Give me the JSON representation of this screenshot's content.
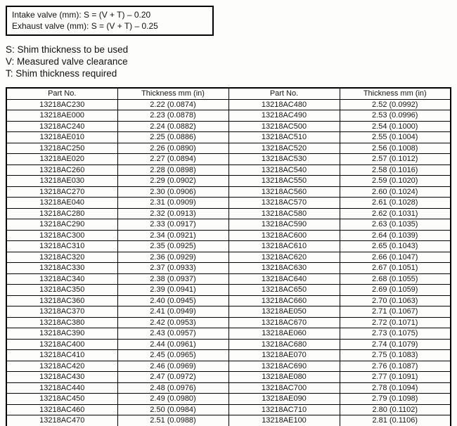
{
  "formula_box": {
    "lines": [
      "Intake valve (mm): S = (V + T) – 0.20",
      "Exhaust valve (mm): S = (V + T) – 0.25"
    ]
  },
  "legend": {
    "lines": [
      "S: Shim thickness to be used",
      "V: Measured valve clearance",
      "T: Shim thickness required"
    ]
  },
  "table": {
    "headers": [
      "Part No.",
      "Thickness mm (in)",
      "Part No.",
      "Thickness mm (in)"
    ],
    "rows": [
      [
        "13218AC230",
        "2.22 (0.0874)",
        "13218AC480",
        "2.52 (0.0992)"
      ],
      [
        "13218AE000",
        "2.23 (0.0878)",
        "13218AC490",
        "2.53 (0.0996)"
      ],
      [
        "13218AC240",
        "2.24 (0.0882)",
        "13218AC500",
        "2.54 (0.1000)"
      ],
      [
        "13218AE010",
        "2.25 (0.0886)",
        "13218AC510",
        "2.55 (0.1004)"
      ],
      [
        "13218AC250",
        "2.26 (0.0890)",
        "13218AC520",
        "2.56 (0.1008)"
      ],
      [
        "13218AE020",
        "2.27 (0.0894)",
        "13218AC530",
        "2.57 (0.1012)"
      ],
      [
        "13218AC260",
        "2.28 (0.0898)",
        "13218AC540",
        "2.58 (0.1016)"
      ],
      [
        "13218AE030",
        "2.29 (0.0902)",
        "13218AC550",
        "2.59 (0.1020)"
      ],
      [
        "13218AC270",
        "2.30 (0.0906)",
        "13218AC560",
        "2.60 (0.1024)"
      ],
      [
        "13218AE040",
        "2.31 (0.0909)",
        "13218AC570",
        "2.61 (0.1028)"
      ],
      [
        "13218AC280",
        "2.32 (0.0913)",
        "13218AC580",
        "2.62 (0.1031)"
      ],
      [
        "13218AC290",
        "2.33 (0.0917)",
        "13218AC590",
        "2.63 (0.1035)"
      ],
      [
        "13218AC300",
        "2.34 (0.0921)",
        "13218AC600",
        "2.64 (0.1039)"
      ],
      [
        "13218AC310",
        "2.35 (0.0925)",
        "13218AC610",
        "2.65 (0.1043)"
      ],
      [
        "13218AC320",
        "2.36 (0.0929)",
        "13218AC620",
        "2.66 (0.1047)"
      ],
      [
        "13218AC330",
        "2.37 (0.0933)",
        "13218AC630",
        "2.67 (0.1051)"
      ],
      [
        "13218AC340",
        "2.38 (0.0937)",
        "13218AC640",
        "2.68 (0.1055)"
      ],
      [
        "13218AC350",
        "2.39 (0.0941)",
        "13218AC650",
        "2.69 (0.1059)"
      ],
      [
        "13218AC360",
        "2.40 (0.0945)",
        "13218AC660",
        "2.70 (0.1063)"
      ],
      [
        "13218AC370",
        "2.41 (0.0949)",
        "13218AE050",
        "2.71 (0.1067)"
      ],
      [
        "13218AC380",
        "2.42 (0.0953)",
        "13218AC670",
        "2.72 (0.1071)"
      ],
      [
        "13218AC390",
        "2.43 (0.0957)",
        "13218AE060",
        "2.73 (0.1075)"
      ],
      [
        "13218AC400",
        "2.44 (0.0961)",
        "13218AC680",
        "2.74 (0.1079)"
      ],
      [
        "13218AC410",
        "2.45 (0.0965)",
        "13218AE070",
        "2.75 (0.1083)"
      ],
      [
        "13218AC420",
        "2.46 (0.0969)",
        "13218AC690",
        "2.76 (0.1087)"
      ],
      [
        "13218AC430",
        "2.47 (0.0972)",
        "13218AE080",
        "2.77 (0.1091)"
      ],
      [
        "13218AC440",
        "2.48 (0.0976)",
        "13218AC700",
        "2.78 (0.1094)"
      ],
      [
        "13218AC450",
        "2.49 (0.0980)",
        "13218AE090",
        "2.79 (0.1098)"
      ],
      [
        "13218AC460",
        "2.50 (0.0984)",
        "13218AC710",
        "2.80 (0.1102)"
      ],
      [
        "13218AC470",
        "2.51 (0.0988)",
        "13218AE100",
        "2.81 (0.1106)"
      ]
    ]
  }
}
